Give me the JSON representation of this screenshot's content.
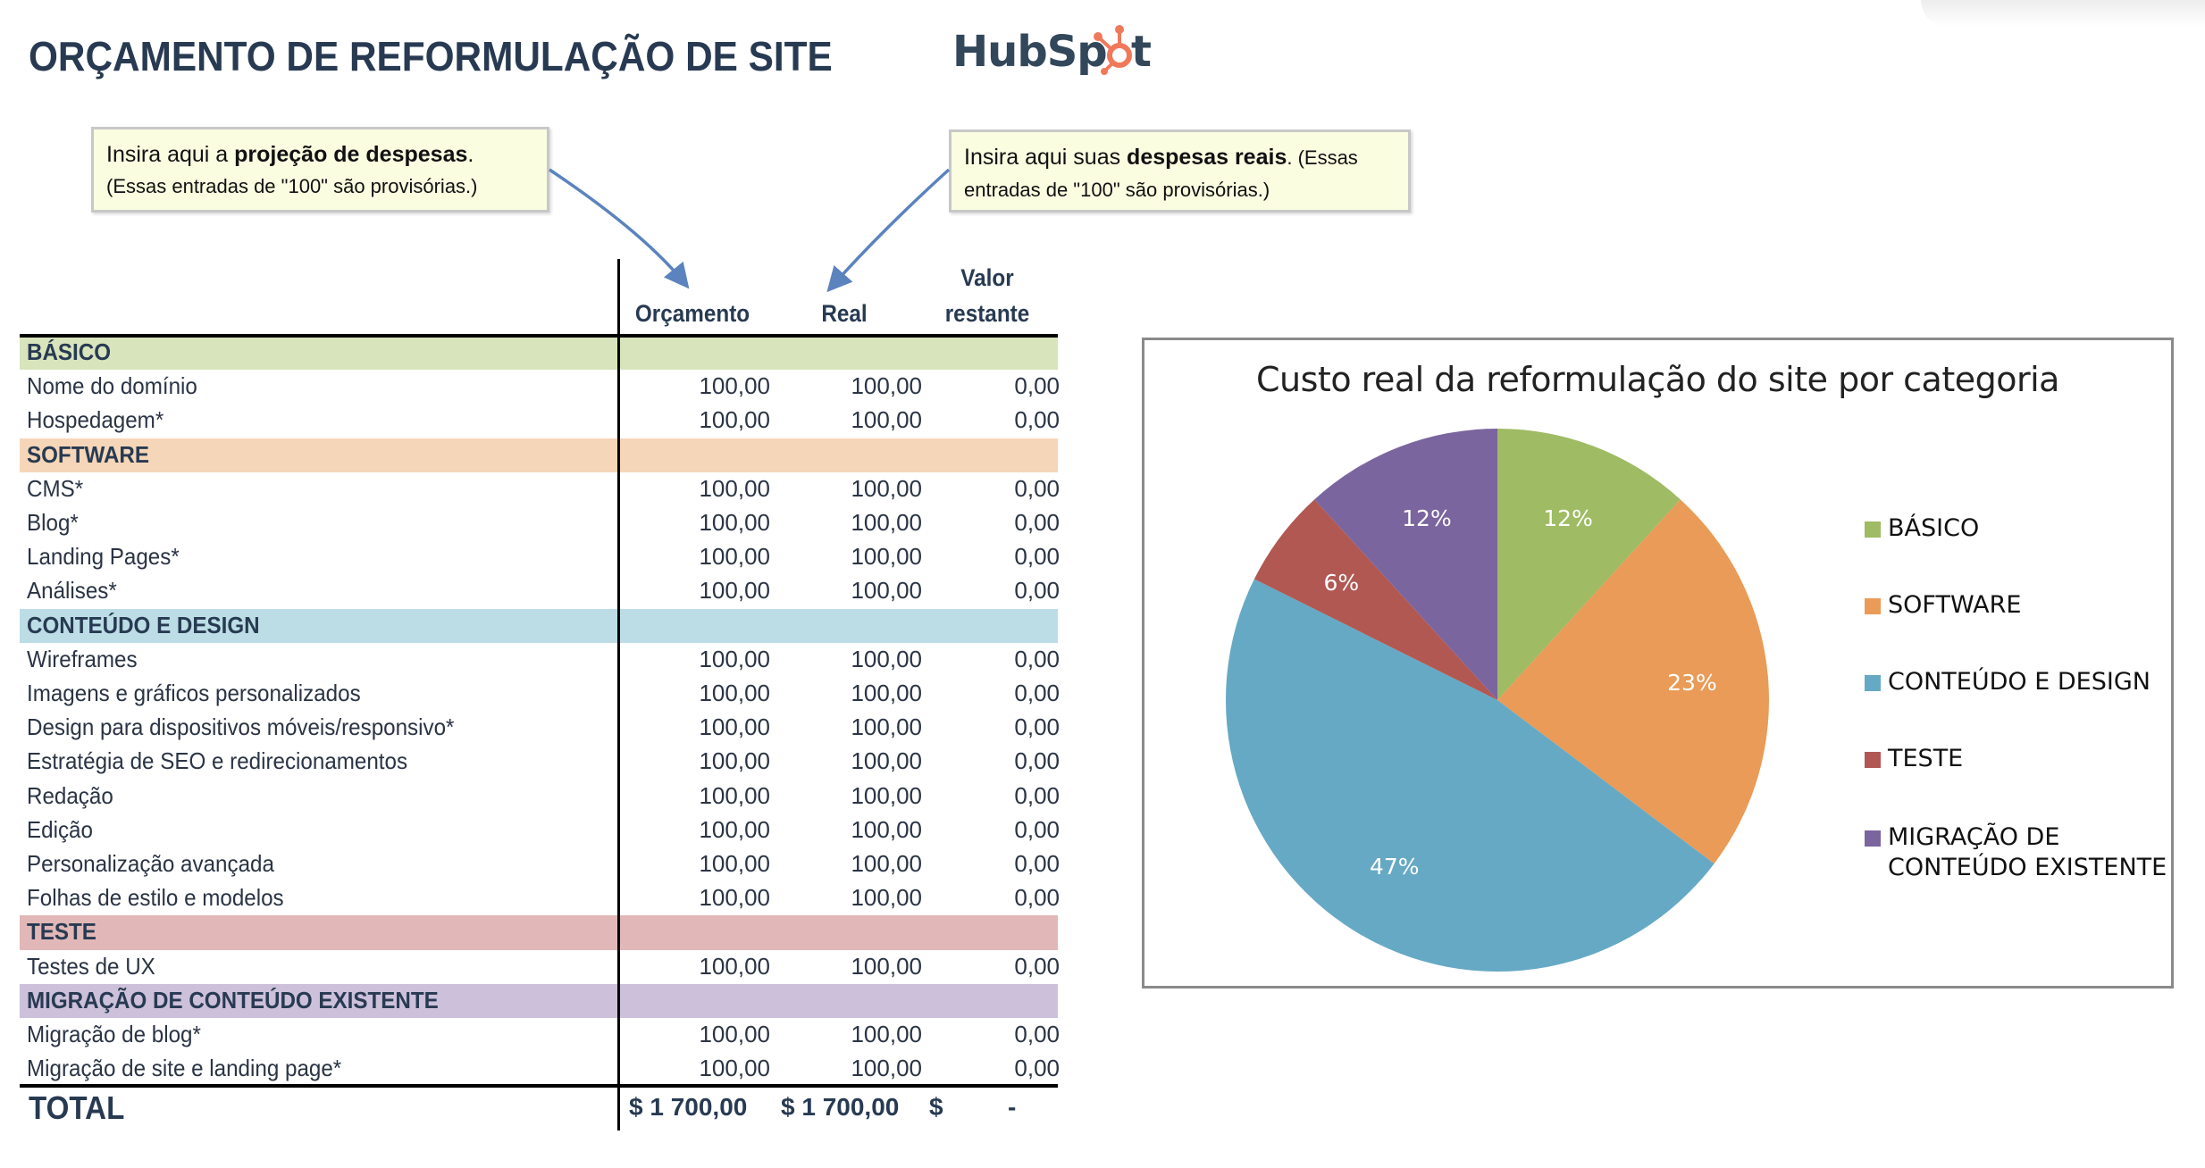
{
  "header": {
    "title": "ORÇAMENTO DE REFORMULAÇÃO DE SITE",
    "logo": "HubSpot"
  },
  "callouts": {
    "budget": {
      "prefix": "Insira aqui a ",
      "bold": "projeção de despesas",
      "suffix": ".",
      "note": "(Essas entradas de \"100\" são provisórias.)"
    },
    "actual": {
      "prefix": "Insira aqui suas ",
      "bold": "despesas reais",
      "suffix": ". (Essas",
      "note": "entradas de \"100\" são provisórias.)"
    }
  },
  "table": {
    "columns": {
      "budget": "Orçamento",
      "actual": "Real",
      "remaining_line1": "Valor",
      "remaining_line2": "restante"
    },
    "rows": [
      {
        "type": "section",
        "label": "BÁSICO",
        "color": "#d8e4bc"
      },
      {
        "type": "item",
        "label": "Nome do domínio",
        "budget": "100,00",
        "actual": "100,00",
        "remaining": "0,00"
      },
      {
        "type": "item",
        "label": "Hospedagem*",
        "budget": "100,00",
        "actual": "100,00",
        "remaining": "0,00"
      },
      {
        "type": "section",
        "label": "SOFTWARE",
        "color": "#f6d6b8"
      },
      {
        "type": "item",
        "label": "CMS*",
        "budget": "100,00",
        "actual": "100,00",
        "remaining": "0,00"
      },
      {
        "type": "item",
        "label": "Blog*",
        "budget": "100,00",
        "actual": "100,00",
        "remaining": "0,00"
      },
      {
        "type": "item",
        "label": "Landing Pages*",
        "budget": "100,00",
        "actual": "100,00",
        "remaining": "0,00"
      },
      {
        "type": "item",
        "label": "Análises*",
        "budget": "100,00",
        "actual": "100,00",
        "remaining": "0,00"
      },
      {
        "type": "section",
        "label": "CONTEÚDO E DESIGN",
        "color": "#bcdde6"
      },
      {
        "type": "item",
        "label": "Wireframes",
        "budget": "100,00",
        "actual": "100,00",
        "remaining": "0,00"
      },
      {
        "type": "item",
        "label": "Imagens e gráficos personalizados",
        "budget": "100,00",
        "actual": "100,00",
        "remaining": "0,00"
      },
      {
        "type": "item",
        "label": "Design para dispositivos móveis/responsivo*",
        "budget": "100,00",
        "actual": "100,00",
        "remaining": "0,00"
      },
      {
        "type": "item",
        "label": "Estratégia de SEO e redirecionamentos",
        "budget": "100,00",
        "actual": "100,00",
        "remaining": "0,00"
      },
      {
        "type": "item",
        "label": "Redação",
        "budget": "100,00",
        "actual": "100,00",
        "remaining": "0,00"
      },
      {
        "type": "item",
        "label": "Edição",
        "budget": "100,00",
        "actual": "100,00",
        "remaining": "0,00"
      },
      {
        "type": "item",
        "label": "Personalização avançada",
        "budget": "100,00",
        "actual": "100,00",
        "remaining": "0,00"
      },
      {
        "type": "item",
        "label": "Folhas de estilo e modelos",
        "budget": "100,00",
        "actual": "100,00",
        "remaining": "0,00"
      },
      {
        "type": "section",
        "label": "TESTE",
        "color": "#e1b8b7"
      },
      {
        "type": "item",
        "label": "Testes de UX",
        "budget": "100,00",
        "actual": "100,00",
        "remaining": "0,00"
      },
      {
        "type": "section",
        "label": "MIGRAÇÃO DE CONTEÚDO EXISTENTE",
        "color": "#ccc0da"
      },
      {
        "type": "item",
        "label": "Migração de blog*",
        "budget": "100,00",
        "actual": "100,00",
        "remaining": "0,00"
      },
      {
        "type": "item",
        "label": "Migração de site e landing page*",
        "budget": "100,00",
        "actual": "100,00",
        "remaining": "0,00"
      }
    ],
    "total": {
      "label": "TOTAL",
      "budget": "$ 1 700,00",
      "actual": "$ 1 700,00",
      "remaining_currency": "$",
      "remaining": "-"
    }
  },
  "chart_data": {
    "type": "pie",
    "title": "Custo real da reformulação do site por categoria",
    "categories": [
      "BÁSICO",
      "SOFTWARE",
      "CONTEÚDO E DESIGN",
      "TESTE",
      "MIGRAÇÃO DE CONTEÚDO EXISTENTE"
    ],
    "values": [
      200,
      400,
      800,
      100,
      200
    ],
    "percent_labels": [
      "12%",
      "23%",
      "47%",
      "6%",
      "12%"
    ],
    "colors": [
      "#9fbb64",
      "#e99b57",
      "#66a9c4",
      "#b15853",
      "#7b659e"
    ],
    "legend_position": "right",
    "legend": [
      {
        "line1": "BÁSICO",
        "line2": ""
      },
      {
        "line1": "SOFTWARE",
        "line2": ""
      },
      {
        "line1": "CONTEÚDO E DESIGN",
        "line2": ""
      },
      {
        "line1": "TESTE",
        "line2": ""
      },
      {
        "line1": "MIGRAÇÃO DE",
        "line2": "CONTEÚDO EXISTENTE"
      }
    ]
  }
}
